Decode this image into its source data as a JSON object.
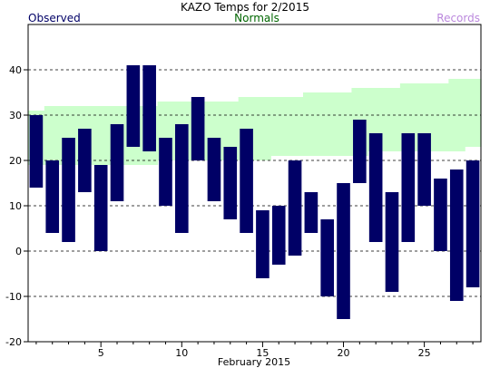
{
  "chart_data": {
    "type": "bar",
    "title": "KAZO Temps for 2/2015",
    "legend": {
      "observed": "Observed",
      "normals": "Normals",
      "records": "Records"
    },
    "xlabel": "February 2015",
    "ylabel": "",
    "xlim": [
      0.5,
      28.5
    ],
    "ylim": [
      -20,
      50
    ],
    "y_ticks": [
      -20,
      -10,
      0,
      10,
      20,
      30,
      40
    ],
    "x_ticks": [
      5,
      10,
      15,
      20,
      25
    ],
    "gridlines_y": [
      -10,
      0,
      10,
      20,
      30,
      40
    ],
    "days": [
      1,
      2,
      3,
      4,
      5,
      6,
      7,
      8,
      9,
      10,
      11,
      12,
      13,
      14,
      15,
      16,
      17,
      18,
      19,
      20,
      21,
      22,
      23,
      24,
      25,
      26,
      27,
      28
    ],
    "series": [
      {
        "name": "Observed",
        "low": [
          14,
          4,
          2,
          13,
          0,
          11,
          23,
          22,
          10,
          4,
          20,
          11,
          7,
          4,
          -6,
          -3,
          -1,
          4,
          -10,
          -15,
          15,
          2,
          -9,
          2,
          10,
          0,
          -11,
          -8
        ],
        "high": [
          30,
          20,
          25,
          27,
          19,
          28,
          41,
          41,
          25,
          28,
          34,
          25,
          23,
          27,
          9,
          10,
          20,
          13,
          7,
          15,
          29,
          26,
          13,
          26,
          26,
          16,
          18,
          20
        ]
      },
      {
        "name": "Normals",
        "low": [
          19,
          19,
          19,
          19,
          19,
          19,
          19,
          19,
          20,
          20,
          20,
          20,
          20,
          20,
          20,
          21,
          21,
          21,
          21,
          21,
          21,
          22,
          22,
          22,
          22,
          22,
          22,
          23
        ],
        "high": [
          31,
          32,
          32,
          32,
          32,
          32,
          32,
          32,
          33,
          33,
          33,
          33,
          33,
          34,
          34,
          34,
          34,
          35,
          35,
          35,
          36,
          36,
          36,
          37,
          37,
          37,
          38,
          38
        ]
      }
    ],
    "colors": {
      "observed": "#000066",
      "normals_fill": "#ccffcc",
      "legend_observed": "#000066",
      "legend_normals": "#006600",
      "legend_records": "#bb88dd",
      "axis": "#000000",
      "grid": "#000000"
    },
    "grid": true
  }
}
